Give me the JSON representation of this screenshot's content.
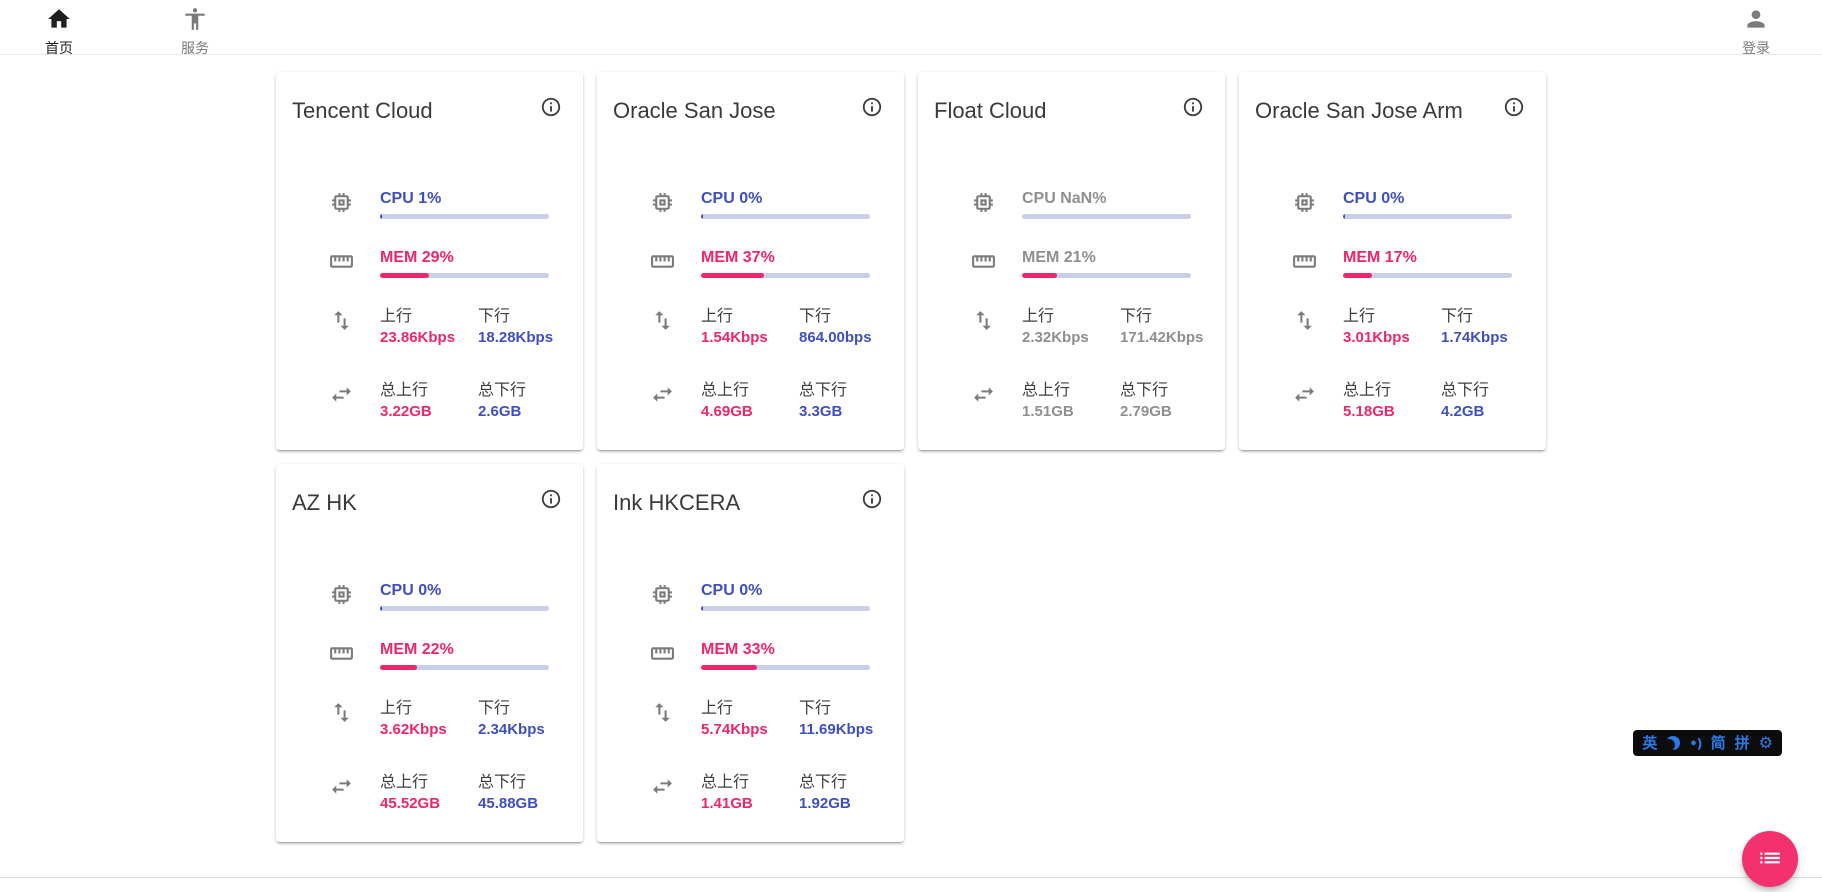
{
  "nav": {
    "home": {
      "label": "首页"
    },
    "services": {
      "label": "服务"
    },
    "login": {
      "label": "登录"
    }
  },
  "labels": {
    "up": "上行",
    "down": "下行",
    "total_up": "总上行",
    "total_down": "总下行"
  },
  "cards": [
    {
      "name": "Tencent Cloud",
      "cpu_text": "CPU 1%",
      "cpu_pct": 1,
      "mem_text": "MEM 29%",
      "mem_pct": 29,
      "up": "23.86Kbps",
      "down": "18.28Kbps",
      "total_up": "3.22GB",
      "total_down": "2.6GB",
      "offline": false
    },
    {
      "name": "Oracle San Jose",
      "cpu_text": "CPU 0%",
      "cpu_pct": 0,
      "mem_text": "MEM 37%",
      "mem_pct": 37,
      "up": "1.54Kbps",
      "down": "864.00bps",
      "total_up": "4.69GB",
      "total_down": "3.3GB",
      "offline": false
    },
    {
      "name": "Float Cloud",
      "cpu_text": "CPU NaN%",
      "cpu_pct": null,
      "mem_text": "MEM 21%",
      "mem_pct": 21,
      "up": "2.32Kbps",
      "down": "171.42Kbps",
      "total_up": "1.51GB",
      "total_down": "2.79GB",
      "offline": true
    },
    {
      "name": "Oracle San Jose Arm",
      "cpu_text": "CPU 0%",
      "cpu_pct": 0,
      "mem_text": "MEM 17%",
      "mem_pct": 17,
      "up": "3.01Kbps",
      "down": "1.74Kbps",
      "total_up": "5.18GB",
      "total_down": "4.2GB",
      "offline": false
    },
    {
      "name": "AZ HK",
      "cpu_text": "CPU 0%",
      "cpu_pct": 0,
      "mem_text": "MEM 22%",
      "mem_pct": 22,
      "up": "3.62Kbps",
      "down": "2.34Kbps",
      "total_up": "45.52GB",
      "total_down": "45.88GB",
      "offline": false
    },
    {
      "name": "Ink HKCERA",
      "cpu_text": "CPU 0%",
      "cpu_pct": 0,
      "mem_text": "MEM 33%",
      "mem_pct": 33,
      "up": "5.74Kbps",
      "down": "11.69Kbps",
      "total_up": "1.41GB",
      "total_down": "1.92GB",
      "offline": false
    }
  ],
  "ime": {
    "english": "英",
    "simplified": "简",
    "pinyin": "拼",
    "icons": [
      "moon-icon",
      "halfwidth-punctuation-icon",
      "settings-gear-icon"
    ]
  },
  "colors": {
    "accent_blue": "#3d4fc3",
    "accent_pink": "#f0256b",
    "bar_track": "#c9cee9",
    "offline_gray": "#8f8f8f",
    "fab_pink": "#f2316e",
    "ime_blue": "#2a7bea"
  }
}
